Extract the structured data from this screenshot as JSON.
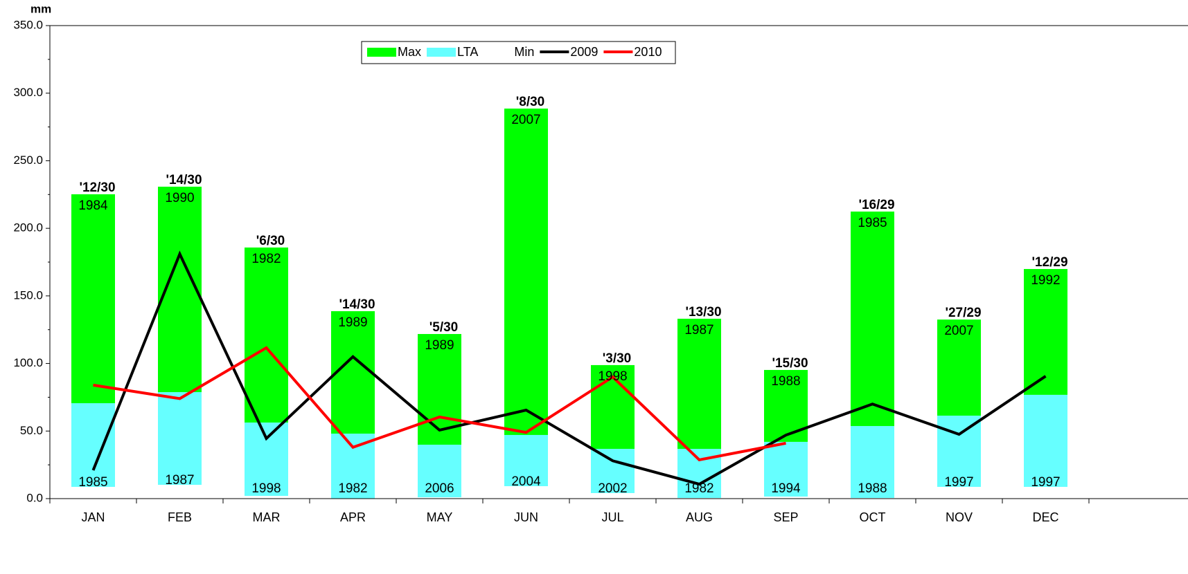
{
  "chart_data": {
    "type": "floating-bar-line",
    "y_label": "mm",
    "categories": [
      "JAN",
      "FEB",
      "MAR",
      "APR",
      "MAY",
      "JUN",
      "JUL",
      "AUG",
      "SEP",
      "OCT",
      "NOV",
      "DEC"
    ],
    "ylim": [
      0,
      350
    ],
    "yticks": [
      {
        "value": 0,
        "label": "0.0"
      },
      {
        "value": 50,
        "label": "50.0"
      },
      {
        "value": 100,
        "label": "100.0"
      },
      {
        "value": 150,
        "label": "150.0"
      },
      {
        "value": 200,
        "label": "200.0"
      },
      {
        "value": 250,
        "label": "250.0"
      },
      {
        "value": 300,
        "label": "300.0"
      },
      {
        "value": 350,
        "label": "350.0"
      }
    ],
    "series": [
      {
        "name": "Max",
        "type": "bar",
        "color": "#00ff00",
        "values": [
          225.2,
          230.8,
          185.8,
          138.7,
          121.8,
          288.6,
          98.8,
          133.1,
          95.2,
          212.4,
          132.5,
          169.9
        ]
      },
      {
        "name": "LTA",
        "type": "bar",
        "color": "#66ffff",
        "values": [
          70.6,
          78.8,
          56.3,
          48.1,
          39.9,
          47.1,
          36.8,
          36.8,
          42.0,
          53.7,
          61.4,
          76.8
        ]
      },
      {
        "name": "Min",
        "type": "bar",
        "color": "#ffffff",
        "values": [
          8.7,
          10.2,
          2.0,
          0,
          1.0,
          9.2,
          4.1,
          0.5,
          1.5,
          0.5,
          8.7,
          8.7
        ]
      },
      {
        "name": "2009",
        "type": "line",
        "color": "#000000",
        "values": [
          21,
          181,
          44.5,
          105,
          50.7,
          65.5,
          28,
          10.7,
          47,
          70,
          47.6,
          90.6
        ]
      },
      {
        "name": "2010",
        "type": "line",
        "color": "#ff0000",
        "values": [
          84,
          74,
          111.6,
          38,
          60.4,
          49,
          90,
          28.7,
          41,
          null,
          null,
          null
        ]
      }
    ],
    "ratio_labels": [
      "'12/30",
      "'14/30",
      "'6/30",
      "'14/30",
      "'5/30",
      "'8/30",
      "'3/30",
      "'13/30",
      "'15/30",
      "'16/29",
      "'27/29",
      "'12/29"
    ],
    "max_years": [
      "1984",
      "1990",
      "1982",
      "1989",
      "1989",
      "2007",
      "1998",
      "1987",
      "1988",
      "1985",
      "2007",
      "1992"
    ],
    "min_years": [
      "1985",
      "1987",
      "1998",
      "1982",
      "2006",
      "2004",
      "2002",
      "1982",
      "1994",
      "1988",
      "1997",
      "1997"
    ]
  }
}
